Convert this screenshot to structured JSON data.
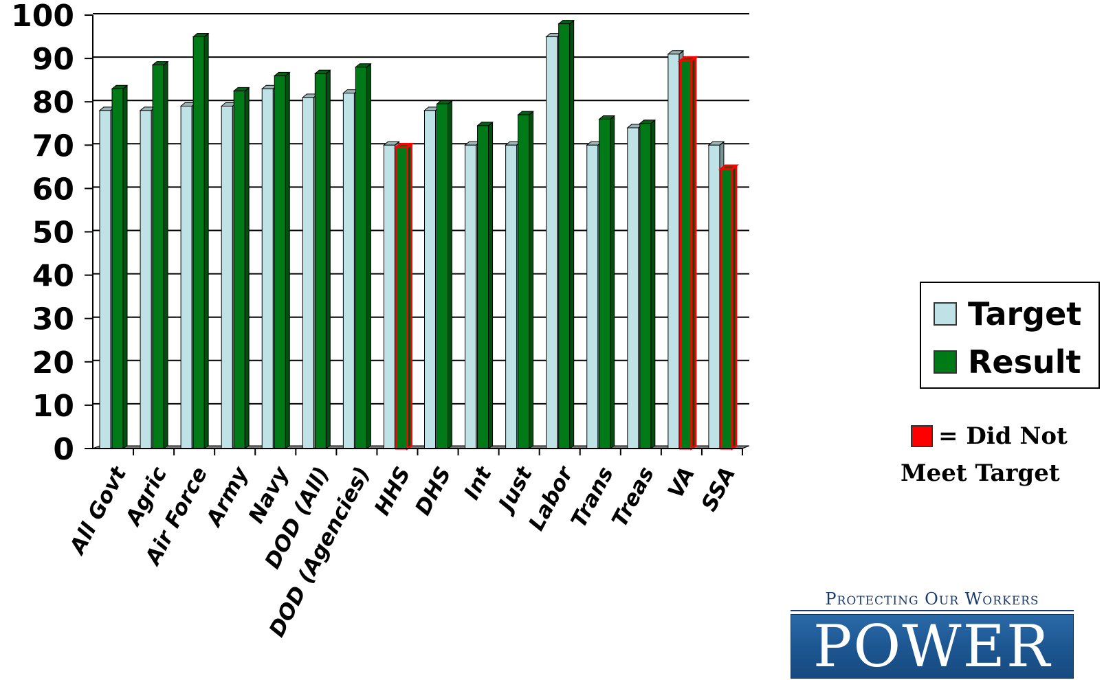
{
  "chart_data": {
    "type": "bar",
    "title": "",
    "xlabel": "",
    "ylabel": "",
    "ylim": [
      0,
      100
    ],
    "yticks": [
      0,
      10,
      20,
      30,
      40,
      50,
      60,
      70,
      80,
      90,
      100
    ],
    "grid": true,
    "categories": [
      "All Govt",
      "Agric",
      "Air Force",
      "Army",
      "Navy",
      "DOD (All)",
      "DOD (Agencies)",
      "HHS",
      "DHS",
      "Int",
      "Just",
      "Labor",
      "Trans",
      "Treas",
      "VA",
      "SSA"
    ],
    "series": [
      {
        "name": "Target",
        "color": "#bfe2e6",
        "values": [
          78,
          78,
          79,
          79,
          83,
          81,
          82,
          70,
          78,
          70,
          70,
          95,
          70,
          74,
          91,
          70
        ]
      },
      {
        "name": "Result",
        "color": "#007a16",
        "values": [
          83,
          88.5,
          95,
          82.5,
          86,
          86.5,
          88,
          69.5,
          79.5,
          74.5,
          77,
          98,
          76,
          75,
          89.5,
          64.5
        ]
      }
    ],
    "did_not_meet_target": [
      "HHS",
      "VA",
      "SSA"
    ],
    "highlight_color": "#ff0000",
    "legend_position": "right"
  },
  "legend": {
    "target_label": "Target",
    "result_label": "Result"
  },
  "note": {
    "line1": "= Did Not",
    "line2": "Meet Target"
  },
  "logo": {
    "tagline": "Protecting Our Workers",
    "word": "POWER"
  }
}
